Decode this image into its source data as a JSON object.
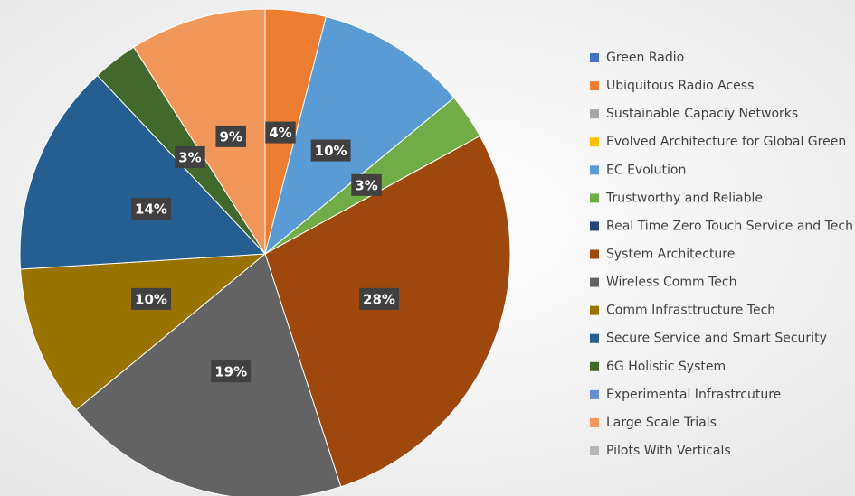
{
  "chart_data": {
    "type": "pie",
    "categories": [
      "Green Radio",
      "Ubiquitous Radio Acess",
      "Sustainable Capaciy Networks",
      "Evolved Architecture for Global Green",
      "EC Evolution",
      "Trustworthy and Reliable",
      "Real Time Zero Touch Service and Tech",
      "System Architecture",
      "Wireless Comm Tech",
      "Comm Infrasttructure Tech",
      "Secure Service and Smart Security",
      "6G Holistic System",
      "Experimental Infrastrcuture",
      "Large Scale Trials",
      "Pilots With Verticals"
    ],
    "values": [
      0,
      4,
      0,
      0,
      10,
      3,
      0,
      28,
      19,
      10,
      14,
      3,
      0,
      9,
      0
    ],
    "value_labels": [
      null,
      "4%",
      null,
      null,
      "10%",
      "3%",
      null,
      "28%",
      "19%",
      "10%",
      "14%",
      "3%",
      null,
      "9%",
      null
    ],
    "colors": [
      "#4472c4",
      "#ed7d31",
      "#a5a5a5",
      "#ffc000",
      "#5b9bd5",
      "#70ad47",
      "#264478",
      "#9e480e",
      "#636363",
      "#997300",
      "#255e91",
      "#43682b",
      "#698ed0",
      "#f1975a",
      "#b7b7b7"
    ],
    "legend": "right"
  }
}
